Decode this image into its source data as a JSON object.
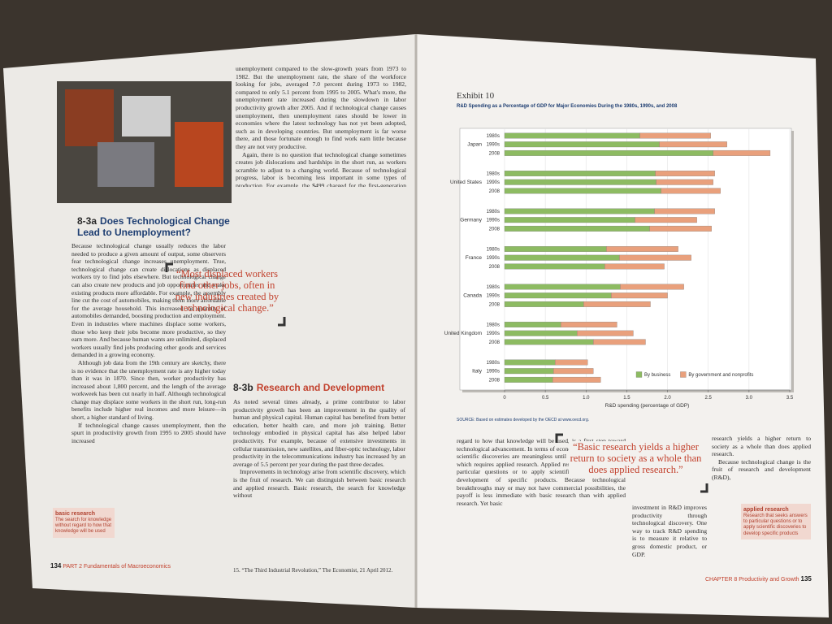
{
  "left_page": {
    "column_top": [
      "unemployment compared to the slow-growth years from 1973 to 1982. But the unemployment rate, the share of the workforce looking for jobs, averaged 7.0 percent during 1973 to 1982, compared to only 5.1 percent from 1995 to 2005. What's more, the unemployment rate increased during the slowdown in labor productivity growth after 2005. And if technological change causes unemployment, then unemployment rates should be lower in economies where the latest technology has not yet been adopted, such as in developing countries. But unemployment is far worse there, and those fortunate enough to find work earn little because they are not very productive.",
      "Again, there is no question that technological change sometimes creates job dislocations and hardships in the short run, as workers scramble to adjust to a changing world. Because of technological progress, labor is becoming less important in some types of production. For example, the $499 charged for the first-generation iPad included only about $33 of manufacturing labor. And the final assembly in China accounted for just $8 of that $33.15 Some workers with specialized skills made obsolete by technology may be unable to find jobs that pay as well as the ones they lost. These dislocations are one price of progress. Over time, however, most displaced workers find other jobs, often in new industries created by technological change. In a typical month of expansion, the U.S. economy sheds about 3.8 million jobs but creates about 4 million new ones."
    ],
    "heading_8_3a": {
      "number": "8-3a",
      "title": "Does Technological Change Lead to Unemployment?"
    },
    "body_8_3a": [
      "Because technological change usually reduces the labor needed to produce a given amount of output, some observers fear technological change increases unemployment. True, technological change can create dislocations as displaced workers try to find jobs elsewhere. But technological change can also create new products and job opportunities and make existing products more affordable. For example, the assembly line cut the cost of automobiles, making them more affordable for the average household. This increased the quantity of automobiles demanded, boosting production and employment. Even in industries where machines displace some workers, those who keep their jobs become more productive, so they earn more. And because human wants are unlimited, displaced workers usually find jobs producing other goods and services demanded in a growing economy.",
      "Although job data from the 19th century are sketchy, there is no evidence that the unemployment rate is any higher today than it was in 1870. Since then, worker productivity has increased about 1,800 percent, and the length of the average workweek has been cut nearly in half. Although technological change may displace some workers in the short run, long-run benefits include higher real incomes and more leisure—in short, a higher standard of living.",
      "If technological change causes unemployment, then the spurt in productivity growth from 1995 to 2005 should have increased"
    ],
    "pull_quote": "“Most displaced workers find other jobs, often in new industries created by technological change.”",
    "heading_8_3b": {
      "number": "8-3b",
      "title": "Research and Development"
    },
    "body_8_3b": [
      "As noted several times already, a prime contributor to labor productivity growth has been an improvement in the quality of human and physical capital. Human capital has benefited from better education, better health care, and more job training. Better technology embodied in physical capital has also helped labor productivity. For example, because of extensive investments in cellular transmission, new satellites, and fiber-optic technology, labor productivity in the telecommunications industry has increased by an average of 5.5 percent per year during the past three decades.",
      "Improvements in technology arise from scientific discovery, which is the fruit of research. We can distinguish between basic research and applied research. Basic research, the search for knowledge without"
    ],
    "margin_term": {
      "term": "basic research",
      "definition": "The search for knowledge without regard to how that knowledge will be used"
    },
    "footnote": "15. “The Third Industrial Revolution,” The Economist, 21 April 2012.",
    "footer": {
      "page": "134",
      "part": "PART 2",
      "book": "Fundamentals of Macroeconomics"
    }
  },
  "right_page": {
    "exhibit": "Exhibit 10",
    "source": "SOURCE: Based on estimates developed by the OECD at www.oecd.org.",
    "body_left": "regard to how that knowledge will be used, is a first step toward technological advancement. In terms of economic growth, however, scientific discoveries are meaningless until they are implemented, which requires applied research. Applied research seeks to answer particular questions or to apply scientific discoveries to the development of specific products. Because technological breakthroughs may or may not have commercial possibilities, the payoff is less immediate with basic research than with applied research. Yet basic",
    "body_middle": "investment in R&D improves productivity through technological discovery. One way to track R&D spending is to measure it relative to gross domestic product, or GDP.",
    "body_right": [
      "research yields a higher return to society as a whole than does applied research.",
      "Because technological change is the fruit of research and development (R&D),"
    ],
    "pull_quote": "“Basic research yields a higher return to society as a whole than does applied research.”",
    "margin_term": {
      "term": "applied research",
      "definition": "Research that seeks answers to particular questions or to apply scientific discoveries to develop specific products"
    },
    "footer": {
      "chapter": "CHAPTER 8",
      "title": "Productivity and Growth",
      "page": "135"
    }
  },
  "chart_data": {
    "type": "bar",
    "orientation": "horizontal",
    "stacked": true,
    "title": "R&D Spending as a Percentage of GDP for Major Economies During the 1980s, 1990s, and 2008",
    "xlabel": "R&D spending (percentage of GDP)",
    "groups": [
      "Japan",
      "United States",
      "Germany",
      "France",
      "Canada",
      "United Kingdom",
      "Italy"
    ],
    "categories": [
      "1980s",
      "1990s",
      "2008",
      "1980s",
      "1990s",
      "2008",
      "1980s",
      "1990s",
      "2008",
      "1980s",
      "1990s",
      "2008",
      "1980s",
      "1990s",
      "2008",
      "1980s",
      "1990s",
      "2008",
      "1980s",
      "1990s",
      "2008"
    ],
    "series": [
      {
        "name": "By business",
        "color": "#8dbb62",
        "values": [
          1.66,
          1.9,
          2.56,
          1.85,
          1.86,
          1.92,
          1.84,
          1.6,
          1.78,
          1.25,
          1.41,
          1.23,
          1.42,
          1.31,
          0.97,
          0.69,
          0.89,
          1.09,
          0.62,
          0.6,
          0.59
        ]
      },
      {
        "name": "By government and nonprofits",
        "color": "#e9a07c",
        "values": [
          0.87,
          0.83,
          0.7,
          0.73,
          0.7,
          0.73,
          0.74,
          0.76,
          0.76,
          0.88,
          0.88,
          0.73,
          0.78,
          0.69,
          0.82,
          0.69,
          0.69,
          0.64,
          0.4,
          0.49,
          0.59
        ]
      }
    ],
    "xlim": [
      0,
      3.5
    ],
    "xticks": [
      0,
      0.5,
      {
        "value": 1,
        "label": "1.0"
      },
      1.5,
      {
        "value": 2,
        "label": "2.0"
      },
      2.5,
      {
        "value": 3,
        "label": "3.0"
      },
      3.5
    ],
    "grid": true,
    "legend": "bottom-right"
  }
}
